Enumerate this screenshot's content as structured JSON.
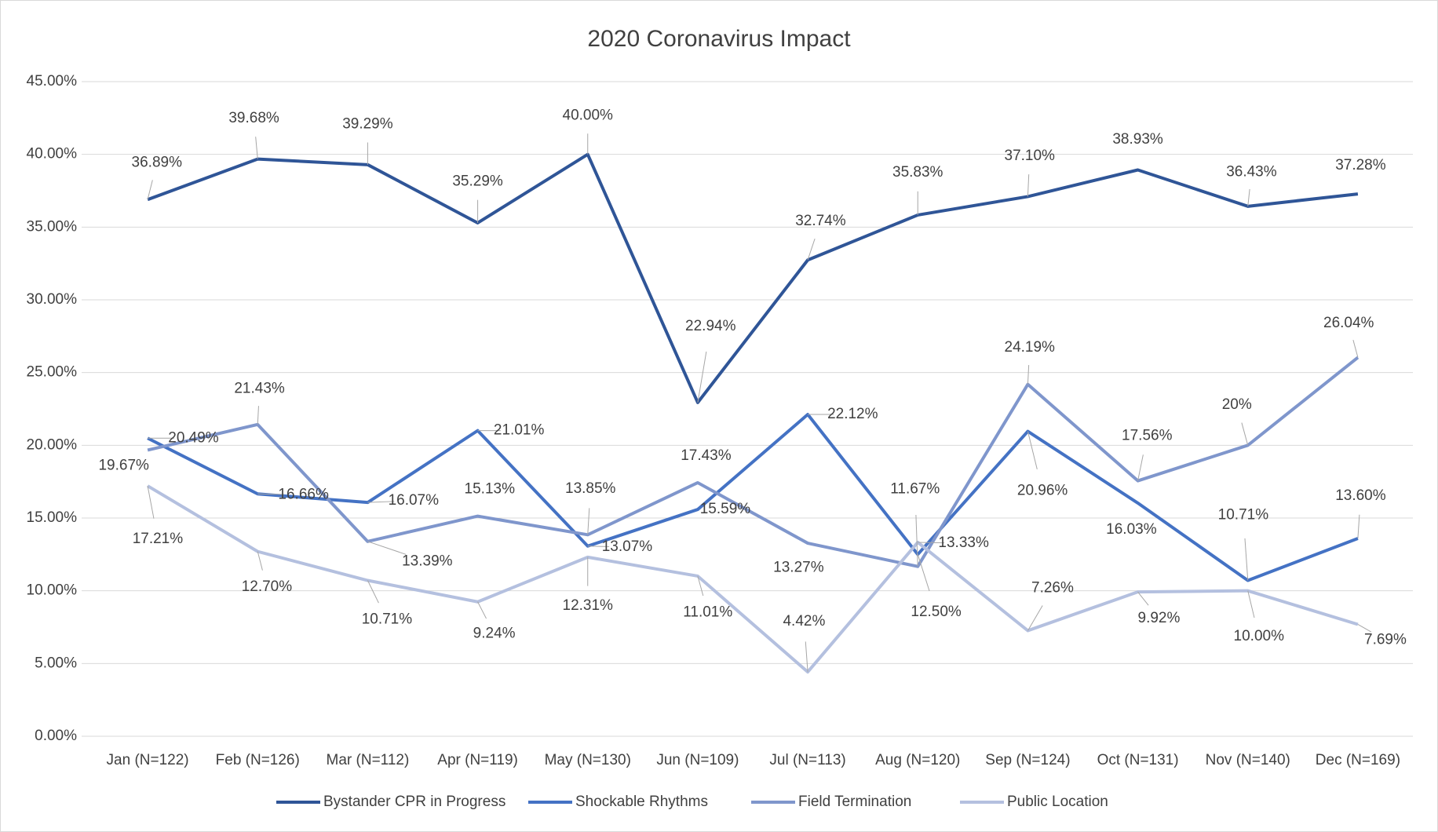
{
  "chart_data": {
    "type": "line",
    "title": "2020 Coronavirus Impact",
    "categories": [
      "Jan (N=122)",
      "Feb (N=126)",
      "Mar (N=112)",
      "Apr (N=119)",
      "May (N=130)",
      "Jun (N=109)",
      "Jul (N=113)",
      "Aug (N=120)",
      "Sep (N=124)",
      "Oct (N=131)",
      "Nov (N=140)",
      "Dec (N=169)"
    ],
    "series": [
      {
        "name": "Bystander CPR in Progress",
        "color": "#2f5597",
        "values": [
          36.89,
          39.68,
          39.29,
          35.29,
          40.0,
          22.94,
          32.74,
          35.83,
          37.1,
          38.93,
          36.43,
          37.28
        ],
        "value_labels": [
          "36.89%",
          "39.68%",
          "39.29%",
          "35.29%",
          "40.00%",
          "22.94%",
          "32.74%",
          "35.83%",
          "37.10%",
          "38.93%",
          "36.43%",
          "37.28%"
        ]
      },
      {
        "name": "Shockable Rhythms",
        "color": "#4472c4",
        "values": [
          20.49,
          16.66,
          16.07,
          21.01,
          13.07,
          15.59,
          22.12,
          12.5,
          20.96,
          16.03,
          10.71,
          13.6
        ],
        "value_labels": [
          "20.49%",
          "16.66%",
          "16.07%",
          "21.01%",
          "13.07%",
          "15.59%",
          "22.12%",
          "12.50%",
          "20.96%",
          "16.03%",
          "10.71%",
          "13.60%"
        ]
      },
      {
        "name": "Field Termination",
        "color": "#7f96cc",
        "values": [
          19.67,
          21.43,
          13.39,
          15.13,
          13.85,
          17.43,
          13.27,
          11.67,
          24.19,
          17.56,
          20,
          26.04
        ],
        "value_labels": [
          "19.67%",
          "21.43%",
          "13.39%",
          "15.13%",
          "13.85%",
          "17.43%",
          "13.27%",
          "11.67%",
          "24.19%",
          "17.56%",
          "20%",
          "26.04%"
        ]
      },
      {
        "name": "Public Location",
        "color": "#b4c0df",
        "values": [
          17.21,
          12.7,
          10.71,
          9.24,
          12.31,
          11.01,
          4.42,
          13.33,
          7.26,
          9.92,
          10.0,
          7.69
        ],
        "value_labels": [
          "17.21%",
          "12.70%",
          "10.71%",
          "9.24%",
          "12.31%",
          "11.01%",
          "4.42%",
          "13.33%",
          "7.26%",
          "9.92%",
          "10.00%",
          "7.69%"
        ]
      }
    ],
    "ylim": [
      0,
      45
    ],
    "yticks": [
      {
        "value": 0,
        "label": "0.00%"
      },
      {
        "value": 5,
        "label": "5.00%"
      },
      {
        "value": 10,
        "label": "10.00%"
      },
      {
        "value": 15,
        "label": "15.00%"
      },
      {
        "value": 20,
        "label": "20.00%"
      },
      {
        "value": 25,
        "label": "25.00%"
      },
      {
        "value": 30,
        "label": "30.00%"
      },
      {
        "value": 35,
        "label": "35.00%"
      },
      {
        "value": 40,
        "label": "40.00%"
      },
      {
        "value": 45,
        "label": "45.00%"
      }
    ],
    "grid": true,
    "legend": "bottom"
  }
}
